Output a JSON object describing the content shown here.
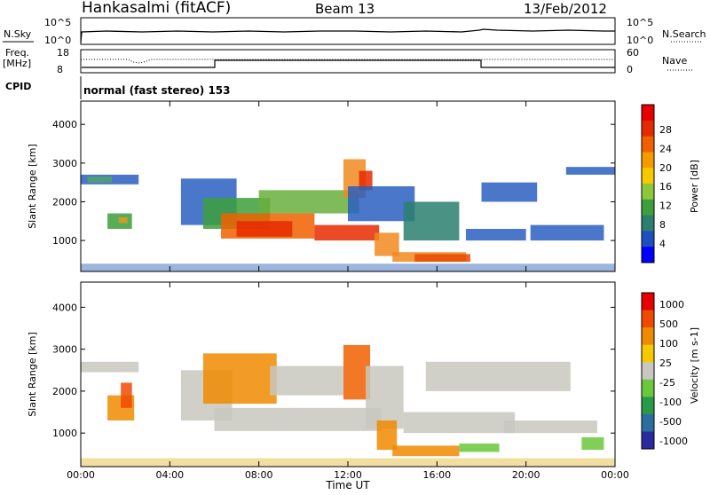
{
  "header": {
    "station": "Hankasalmi (fitACF)",
    "beam": "Beam 13",
    "date": "13/Feb/2012"
  },
  "noise_panel": {
    "left_label": "N.Sky",
    "left_ticks": [
      "10^5",
      "10^0"
    ],
    "right_label": "N.Search",
    "right_ticks": [
      "10^5",
      "10^0"
    ]
  },
  "freq_panel": {
    "left_label": "Freq.",
    "left_unit": "[MHz]",
    "left_ticks": [
      "18",
      "8"
    ],
    "right_label": "Nave",
    "right_ticks": [
      "60",
      "0"
    ]
  },
  "cpid_panel": {
    "label": "CPID",
    "text": "normal (fast stereo) 153"
  },
  "chart_data": [
    {
      "type": "heatmap",
      "name": "power",
      "ylabel": "Slant Range [km]",
      "ylim": [
        200,
        4600
      ],
      "yticks": [
        "1000",
        "2000",
        "3000",
        "4000"
      ],
      "xlim": [
        "00:00",
        "24:00"
      ],
      "colorbar": {
        "label": "Power [dB]",
        "ticks": [
          "4",
          "8",
          "12",
          "16",
          "20",
          "24",
          "28"
        ],
        "colors": [
          "#0000ff",
          "#1f4fbe",
          "#2a7f6f",
          "#3c9f3c",
          "#8fc73c",
          "#f5c800",
          "#f59a00",
          "#f06000",
          "#e62a00",
          "#e60000"
        ]
      },
      "blobs": [
        {
          "t": [
            0.0,
            2.6
          ],
          "r": [
            2450,
            2700
          ],
          "c": "#2a5fc0"
        },
        {
          "t": [
            0.3,
            1.4
          ],
          "r": [
            2500,
            2650
          ],
          "c": "#4ea36b"
        },
        {
          "t": [
            1.2,
            2.3
          ],
          "r": [
            1300,
            1700
          ],
          "c": "#3c9f3c"
        },
        {
          "t": [
            1.7,
            2.1
          ],
          "r": [
            1450,
            1600
          ],
          "c": "#e09a20"
        },
        {
          "t": [
            4.5,
            7.0
          ],
          "r": [
            1400,
            2600
          ],
          "c": "#2a5fc0"
        },
        {
          "t": [
            5.5,
            8.5
          ],
          "r": [
            1300,
            2100
          ],
          "c": "#3c9f3c"
        },
        {
          "t": [
            6.3,
            10.5
          ],
          "r": [
            1050,
            1700
          ],
          "c": "#f06000"
        },
        {
          "t": [
            7.0,
            9.5
          ],
          "r": [
            1100,
            1500
          ],
          "c": "#e62a00"
        },
        {
          "t": [
            8.0,
            12.5
          ],
          "r": [
            1700,
            2300
          ],
          "c": "#6aaf3c"
        },
        {
          "t": [
            10.5,
            13.4
          ],
          "r": [
            1000,
            1400
          ],
          "c": "#e62a00"
        },
        {
          "t": [
            11.8,
            12.8
          ],
          "r": [
            2100,
            3100
          ],
          "c": "#f08a20"
        },
        {
          "t": [
            12.5,
            13.1
          ],
          "r": [
            2300,
            2800
          ],
          "c": "#e62a00"
        },
        {
          "t": [
            12.0,
            15.0
          ],
          "r": [
            1500,
            2400
          ],
          "c": "#2a5fc0"
        },
        {
          "t": [
            13.2,
            14.3
          ],
          "r": [
            600,
            1200
          ],
          "c": "#f08a20"
        },
        {
          "t": [
            14.0,
            17.3
          ],
          "r": [
            450,
            700
          ],
          "c": "#f08a20"
        },
        {
          "t": [
            15.0,
            17.5
          ],
          "r": [
            450,
            650
          ],
          "c": "#e64a00"
        },
        {
          "t": [
            14.5,
            17.0
          ],
          "r": [
            1000,
            2000
          ],
          "c": "#2a7f6f"
        },
        {
          "t": [
            17.3,
            20.0
          ],
          "r": [
            1000,
            1300
          ],
          "c": "#2a5fc0"
        },
        {
          "t": [
            18.0,
            20.5
          ],
          "r": [
            2000,
            2500
          ],
          "c": "#2a5fc0"
        },
        {
          "t": [
            20.2,
            23.5
          ],
          "r": [
            1000,
            1400
          ],
          "c": "#2a5fc0"
        },
        {
          "t": [
            21.8,
            24.0
          ],
          "r": [
            2700,
            2900
          ],
          "c": "#2a5fc0"
        },
        {
          "t": [
            0.0,
            24.0
          ],
          "r": [
            200,
            400
          ],
          "c": "#8aa8d8"
        }
      ]
    },
    {
      "type": "heatmap",
      "name": "velocity",
      "ylabel": "Slant Range [km]",
      "ylim": [
        200,
        4600
      ],
      "yticks": [
        "1000",
        "2000",
        "3000",
        "4000"
      ],
      "xlabel": "Time UT",
      "xticks": [
        "00:00",
        "04:00",
        "08:00",
        "12:00",
        "16:00",
        "20:00",
        "00:00"
      ],
      "colorbar": {
        "label": "Velocity [m s-1]",
        "ticks": [
          "1000",
          "500",
          "100",
          "25",
          "-25",
          "-100",
          "-500",
          "-1000"
        ],
        "colors": [
          "#2a2aa0",
          "#2a6fa0",
          "#2a9a4a",
          "#6ac83a",
          "#c8c8c0",
          "#f5c800",
          "#f08a00",
          "#f04a00",
          "#e60000"
        ]
      },
      "blobs": [
        {
          "t": [
            0.0,
            2.6
          ],
          "r": [
            2450,
            2700
          ],
          "c": "#c8c8c0"
        },
        {
          "t": [
            1.2,
            2.4
          ],
          "r": [
            1300,
            1900
          ],
          "c": "#f08a00"
        },
        {
          "t": [
            1.8,
            2.3
          ],
          "r": [
            1600,
            2200
          ],
          "c": "#f04a00"
        },
        {
          "t": [
            4.5,
            6.8
          ],
          "r": [
            1300,
            2500
          ],
          "c": "#c8c8c0"
        },
        {
          "t": [
            5.5,
            8.8
          ],
          "r": [
            1700,
            2900
          ],
          "c": "#f08a00"
        },
        {
          "t": [
            6.0,
            13.5
          ],
          "r": [
            1050,
            1600
          ],
          "c": "#c8c8c0"
        },
        {
          "t": [
            8.5,
            11.8
          ],
          "r": [
            1900,
            2600
          ],
          "c": "#c8c8c0"
        },
        {
          "t": [
            11.8,
            13.0
          ],
          "r": [
            1800,
            3100
          ],
          "c": "#f06000"
        },
        {
          "t": [
            12.8,
            14.5
          ],
          "r": [
            1100,
            2600
          ],
          "c": "#c8c8c0"
        },
        {
          "t": [
            13.3,
            14.2
          ],
          "r": [
            600,
            1300
          ],
          "c": "#f08a00"
        },
        {
          "t": [
            14.0,
            17.0
          ],
          "r": [
            450,
            700
          ],
          "c": "#f08a00"
        },
        {
          "t": [
            14.5,
            19.5
          ],
          "r": [
            1000,
            1500
          ],
          "c": "#c8c8c0"
        },
        {
          "t": [
            15.5,
            22.0
          ],
          "r": [
            2000,
            2700
          ],
          "c": "#c8c8c0"
        },
        {
          "t": [
            17.0,
            18.8
          ],
          "r": [
            550,
            750
          ],
          "c": "#6ac83a"
        },
        {
          "t": [
            19.0,
            23.2
          ],
          "r": [
            1000,
            1300
          ],
          "c": "#c8c8c0"
        },
        {
          "t": [
            22.5,
            23.5
          ],
          "r": [
            600,
            900
          ],
          "c": "#6ac83a"
        },
        {
          "t": [
            0.0,
            24.0
          ],
          "r": [
            200,
            400
          ],
          "c": "#f0d890"
        }
      ]
    }
  ]
}
